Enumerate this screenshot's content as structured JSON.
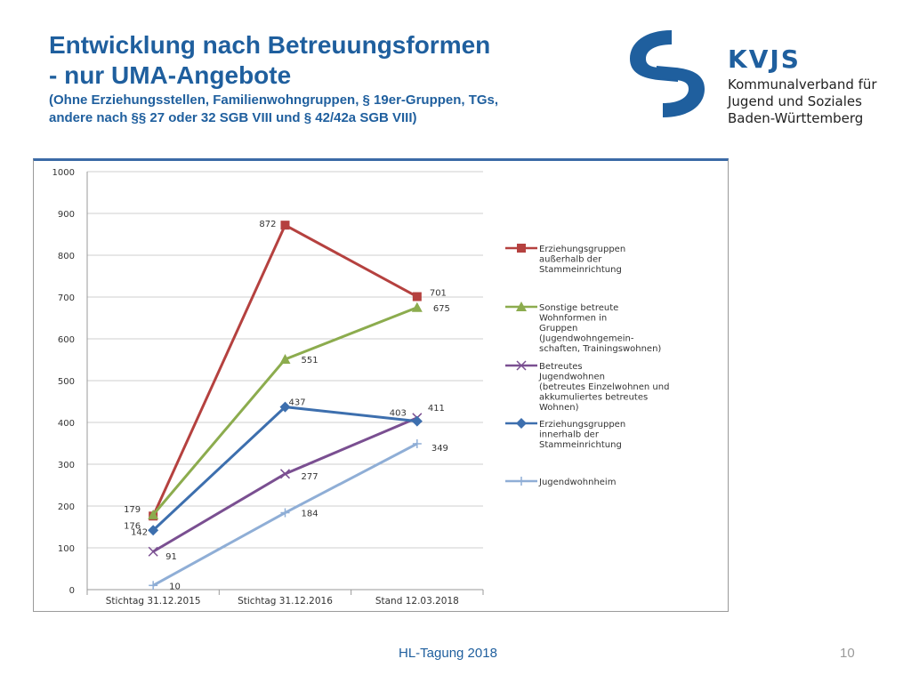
{
  "slide": {
    "title_line1": "Entwicklung nach Betreuungsformen",
    "title_line2": "- nur UMA-Angebote",
    "subtitle_line1": "(Ohne Erziehungsstellen, Familienwohngruppen, § 19er-Gruppen, TGs,",
    "subtitle_line2": "andere nach §§ 27 oder 32 SGB VIII und § 42/42a SGB VIII)",
    "footer": "HL-Tagung 2018",
    "page_number": "10"
  },
  "logo": {
    "brand": "KVJS",
    "org_line1": "Kommunalverband für",
    "org_line2": "Jugend und Soziales",
    "org_line3": "Baden-Württemberg",
    "color": "#1f5f9e"
  },
  "chart_data": {
    "type": "line",
    "categories": [
      "Stichtag 31.12.2015",
      "Stichtag 31.12.2016",
      "Stand 12.03.2018"
    ],
    "ylim": [
      0,
      1000
    ],
    "yticks": [
      0,
      100,
      200,
      300,
      400,
      500,
      600,
      700,
      800,
      900,
      1000
    ],
    "grid": true,
    "legend_position": "right",
    "series": [
      {
        "name": "Erziehungsgruppen außerhalb der Stammeinrichtung",
        "legend_lines": [
          "Erziehungsgruppen",
          "außerhalb der",
          "Stammeinrichtung"
        ],
        "values": [
          176,
          872,
          701
        ],
        "labels": [
          "176",
          "872",
          "701"
        ],
        "color": "#b5413f",
        "marker": "square"
      },
      {
        "name": "Sonstige betreute Wohnformen in Gruppen (Jugendwohngemeinschaften, Trainingswohnen)",
        "legend_lines": [
          "Sonstige betreute",
          "Wohnformen in",
          "Gruppen",
          "(Jugendwohngemein-",
          "schaften, Trainingswohnen)"
        ],
        "values": [
          179,
          551,
          675
        ],
        "labels": [
          "179",
          "551",
          "675"
        ],
        "color": "#8cac4e",
        "marker": "triangle"
      },
      {
        "name": "Betreutes Jugendwohnen (betreutes Einzelwohnen und akkumuliertes betreutes Wohnen)",
        "legend_lines": [
          "Betreutes",
          "Jugendwohnen",
          "(betreutes Einzelwohnen und",
          "akkumuliertes betreutes",
          "Wohnen)"
        ],
        "values": [
          91,
          277,
          411
        ],
        "labels": [
          "91",
          "277",
          "411"
        ],
        "color": "#7a4f91",
        "marker": "x"
      },
      {
        "name": "Erziehungsgruppen innerhalb der Stammeinrichtung",
        "legend_lines": [
          "Erziehungsgruppen",
          "innerhalb der",
          "Stammeinrichtung"
        ],
        "values": [
          142,
          437,
          403
        ],
        "labels": [
          "142",
          "437",
          "403"
        ],
        "color": "#3d6fae",
        "marker": "diamond"
      },
      {
        "name": "Jugendwohnheim",
        "legend_lines": [
          "Jugendwohnheim"
        ],
        "values": [
          10,
          184,
          349
        ],
        "labels": [
          "10",
          "184",
          "349"
        ],
        "color": "#8faed6",
        "marker": "plus"
      }
    ]
  }
}
